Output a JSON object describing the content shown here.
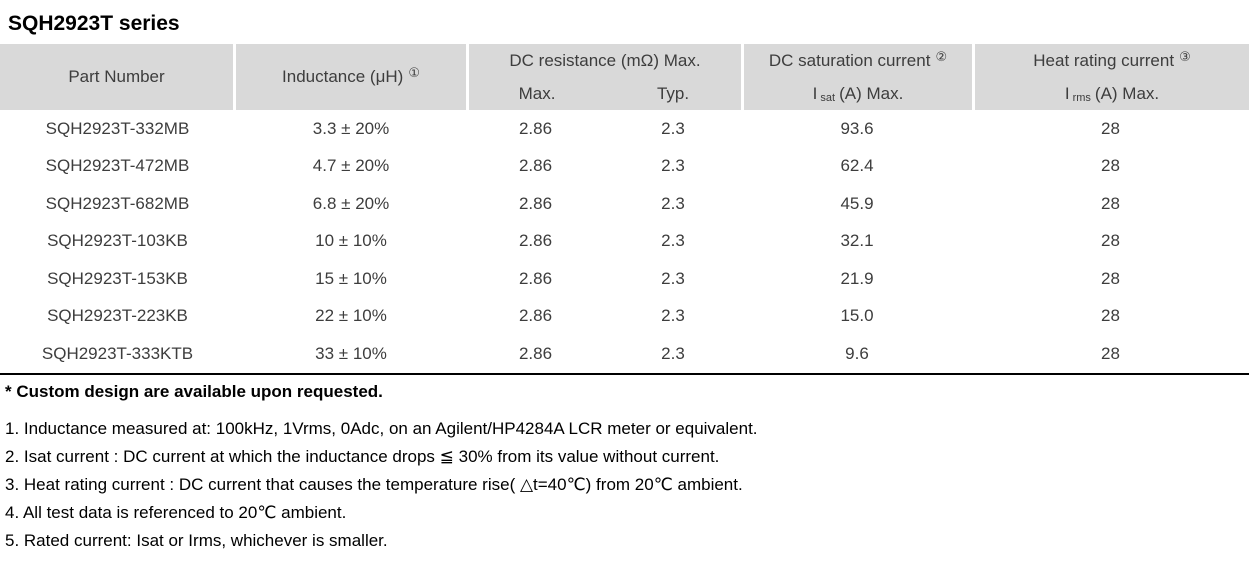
{
  "title": "SQH2923T series",
  "table": {
    "header": {
      "part_number": "Part Number",
      "inductance_label": "Inductance (μH)",
      "inductance_note_ref": "①",
      "dcr_group_label": "DC resistance (mΩ) Max.",
      "dcr_max_label": "Max.",
      "dcr_typ_label": "Typ.",
      "sat_group_label": "DC saturation current",
      "sat_note_ref": "②",
      "sat_symbol": "I",
      "sat_symbol_sub": "sat",
      "sat_unit_label": "(A)  Max.",
      "heat_group_label": "Heat rating current",
      "heat_note_ref": "③",
      "heat_symbol": "I",
      "heat_symbol_sub": "rms",
      "heat_unit_label": "(A)  Max."
    },
    "rows": [
      {
        "part_number": "SQH2923T-332MB",
        "inductance": "3.3 ± 20%",
        "dcr_max": "2.86",
        "dcr_typ": "2.3",
        "i_sat": "93.6",
        "i_rms": "28"
      },
      {
        "part_number": "SQH2923T-472MB",
        "inductance": "4.7 ± 20%",
        "dcr_max": "2.86",
        "dcr_typ": "2.3",
        "i_sat": "62.4",
        "i_rms": "28"
      },
      {
        "part_number": "SQH2923T-682MB",
        "inductance": "6.8 ± 20%",
        "dcr_max": "2.86",
        "dcr_typ": "2.3",
        "i_sat": "45.9",
        "i_rms": "28"
      },
      {
        "part_number": "SQH2923T-103KB",
        "inductance": "10 ± 10%",
        "dcr_max": "2.86",
        "dcr_typ": "2.3",
        "i_sat": "32.1",
        "i_rms": "28"
      },
      {
        "part_number": "SQH2923T-153KB",
        "inductance": "15 ± 10%",
        "dcr_max": "2.86",
        "dcr_typ": "2.3",
        "i_sat": "21.9",
        "i_rms": "28"
      },
      {
        "part_number": "SQH2923T-223KB",
        "inductance": "22 ± 10%",
        "dcr_max": "2.86",
        "dcr_typ": "2.3",
        "i_sat": "15.0",
        "i_rms": "28"
      },
      {
        "part_number": "SQH2923T-333KTB",
        "inductance": "33 ± 10%",
        "dcr_max": "2.86",
        "dcr_typ": "2.3",
        "i_sat": "9.6",
        "i_rms": "28"
      }
    ]
  },
  "footnotes": {
    "custom_note": "* Custom design are available upon requested.",
    "items": [
      "1. Inductance measured at: 100kHz, 1Vrms, 0Adc, on an Agilent/HP4284A LCR meter or equivalent.",
      "2. Isat current : DC current at which the inductance drops ≦ 30% from its value without current.",
      "3. Heat rating current : DC current that causes the temperature rise( △t=40℃) from 20℃ ambient.",
      "4. All test data is referenced to 20℃ ambient.",
      "5. Rated current: Isat or Irms, whichever is smaller."
    ]
  },
  "colors": {
    "header_bg": "#d9d9d9",
    "table_text": "#3d3d3d",
    "note_text": "#000000"
  }
}
